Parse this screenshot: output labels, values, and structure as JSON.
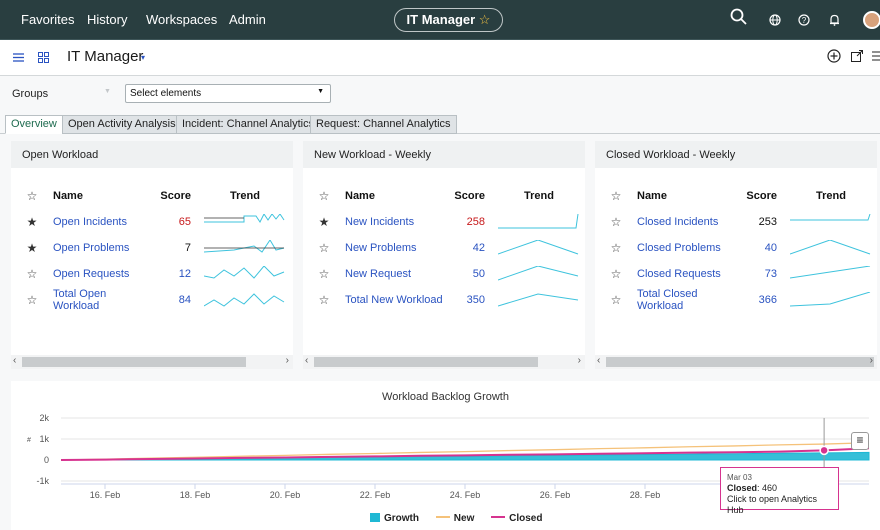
{
  "topnav": {
    "items": [
      "Favorites",
      "History",
      "Workspaces",
      "Admin"
    ],
    "center_title": "IT Manager",
    "center_star": "☆",
    "icons": [
      "search-icon",
      "globe-icon",
      "help-icon",
      "bell-icon"
    ]
  },
  "header": {
    "title": "IT Manager",
    "caret": "▾"
  },
  "filters": {
    "groups_label": "Groups",
    "select_value": "Select elements"
  },
  "tabs": [
    "Overview",
    "Open Activity Analysis",
    "Incident: Channel Analytics",
    "Request: Channel Analytics"
  ],
  "panels": [
    {
      "title": "Open Workload",
      "cols": {
        "name": "Name",
        "score": "Score",
        "trend": "Trend"
      },
      "rows": [
        {
          "starred": true,
          "name": "Open Incidents",
          "score": "65",
          "score_color": "red"
        },
        {
          "starred": true,
          "name": "Open Problems",
          "score": "7",
          "score_color": "dark"
        },
        {
          "starred": false,
          "name": "Open Requests",
          "score": "12",
          "score_color": "blue"
        },
        {
          "starred": false,
          "name": "Total Open Workload",
          "score": "84",
          "score_color": "blue"
        }
      ]
    },
    {
      "title": "New Workload - Weekly",
      "cols": {
        "name": "Name",
        "score": "Score",
        "trend": "Trend"
      },
      "rows": [
        {
          "starred": true,
          "name": "New Incidents",
          "score": "258",
          "score_color": "red"
        },
        {
          "starred": false,
          "name": "New Problems",
          "score": "42",
          "score_color": "blue"
        },
        {
          "starred": false,
          "name": "New Request",
          "score": "50",
          "score_color": "blue"
        },
        {
          "starred": false,
          "name": "Total New Workload",
          "score": "350",
          "score_color": "blue"
        }
      ]
    },
    {
      "title": "Closed Workload - Weekly",
      "cols": {
        "name": "Name",
        "score": "Score",
        "trend": "Trend"
      },
      "rows": [
        {
          "starred": false,
          "name": "Closed Incidents",
          "score": "253",
          "score_color": "dark"
        },
        {
          "starred": false,
          "name": "Closed Problems",
          "score": "40",
          "score_color": "blue"
        },
        {
          "starred": false,
          "name": "Closed Requests",
          "score": "73",
          "score_color": "blue"
        },
        {
          "starred": false,
          "name": "Total Closed Workload",
          "score": "366",
          "score_color": "blue"
        }
      ]
    }
  ],
  "colors": {
    "growth": "#1fb8d4",
    "new": "#f5c27a",
    "closed": "#d6338f",
    "spark": "#3ec3dd"
  },
  "chart_data": {
    "type": "area",
    "title": "Workload Backlog Growth",
    "ylabel": "#",
    "ylim": [
      -1000,
      2000
    ],
    "yticks": [
      "2k",
      "1k",
      "0",
      "-1k"
    ],
    "xticks": [
      "16. Feb",
      "18. Feb",
      "20. Feb",
      "22. Feb",
      "24. Feb",
      "26. Feb",
      "28. Feb"
    ],
    "x": [
      0,
      1,
      2,
      3,
      4,
      5,
      6,
      7,
      8,
      9,
      10,
      11,
      12,
      13,
      14,
      15,
      16,
      17,
      18
    ],
    "series": [
      {
        "name": "Growth",
        "type": "area",
        "values": [
          0,
          20,
          40,
          60,
          80,
          100,
          120,
          140,
          160,
          180,
          200,
          220,
          240,
          260,
          280,
          300,
          320,
          340,
          360
        ]
      },
      {
        "name": "New",
        "type": "line",
        "values": [
          0,
          40,
          90,
          130,
          180,
          220,
          270,
          310,
          360,
          400,
          450,
          490,
          540,
          580,
          630,
          670,
          720,
          760,
          820
        ]
      },
      {
        "name": "Closed",
        "type": "line",
        "values": [
          0,
          20,
          50,
          70,
          100,
          120,
          150,
          170,
          200,
          220,
          250,
          270,
          300,
          320,
          350,
          370,
          400,
          460,
          560
        ]
      }
    ],
    "tooltip": {
      "date": "Mar 03",
      "series": "Closed",
      "value": "460",
      "hint": "Click to open Analytics Hub"
    },
    "legend_position": "bottom-center"
  }
}
